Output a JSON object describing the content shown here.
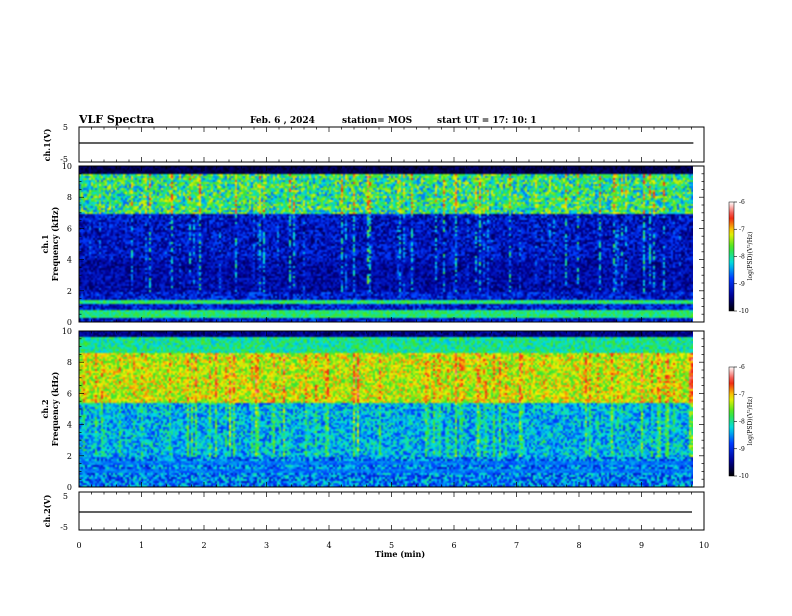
{
  "header": {
    "title": "VLF Spectra",
    "date": "Feb. 6 , 2024",
    "station": "station= MOS",
    "start": "start  UT  =    17: 10: 1"
  },
  "chart_data": [
    {
      "type": "line",
      "panel": "ch1-waveform",
      "ylabel": "ch.1(V)",
      "yticks": [
        "5",
        "-5"
      ],
      "ylim": [
        -5,
        5
      ],
      "x": [
        0,
        9.83
      ],
      "values": [
        0,
        0
      ]
    },
    {
      "type": "heatmap",
      "panel": "ch1-spectrogram",
      "ylabel_top": "ch.1",
      "ylabel": "Frequency (kHz)",
      "ylim": [
        0,
        10
      ],
      "yticks": [
        "0",
        "2",
        "4",
        "6",
        "8",
        "10"
      ],
      "xlim": [
        0,
        10
      ],
      "data_end_min": 9.83,
      "colorbar": {
        "label": "log(PSD)(V²/Hz)",
        "ticks": [
          "-6",
          "-7",
          "-8",
          "-9",
          "-10"
        ],
        "range": [
          -10,
          -6
        ]
      }
    },
    {
      "type": "heatmap",
      "panel": "ch2-spectrogram",
      "ylabel_top": "ch.2",
      "ylabel": "Frequency (kHz)",
      "ylim": [
        0,
        10
      ],
      "yticks": [
        "0",
        "2",
        "4",
        "6",
        "8",
        "10"
      ],
      "xlim": [
        0,
        10
      ],
      "data_end_min": 9.83,
      "colorbar": {
        "label": "log(PSD)(V²/Hz)",
        "ticks": [
          "-6",
          "-7",
          "-8",
          "-9",
          "-10"
        ],
        "range": [
          -10,
          -6
        ]
      }
    },
    {
      "type": "line",
      "panel": "ch2-waveform",
      "ylabel": "ch.2(V)",
      "yticks": [
        "5",
        "-5"
      ],
      "ylim": [
        -5,
        5
      ],
      "x": [
        0,
        9.83
      ],
      "values": [
        0,
        0
      ]
    }
  ],
  "xaxis": {
    "label": "Time  (min)",
    "ticks": [
      "0",
      "1",
      "2",
      "3",
      "4",
      "5",
      "6",
      "7",
      "8",
      "9",
      "10"
    ],
    "range": [
      0,
      10
    ]
  }
}
